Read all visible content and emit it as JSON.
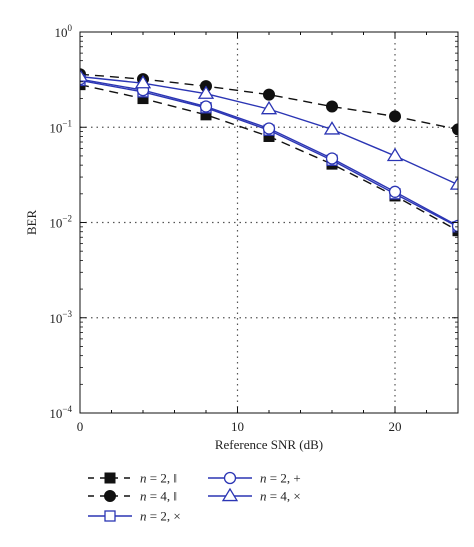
{
  "chart_data": {
    "type": "line",
    "xlabel": "Reference SNR (dB)",
    "ylabel": "BER",
    "x_scale": "linear",
    "y_scale": "log",
    "xlim": [
      0,
      24
    ],
    "ylim": [
      0.0001,
      1
    ],
    "x_ticks": [
      0,
      10,
      20
    ],
    "x_tick_labels": [
      "0",
      "10",
      "20"
    ],
    "y_ticks": [
      0.0001,
      0.001,
      0.01,
      0.1,
      1
    ],
    "y_tick_labels": [
      {
        "base": "10",
        "exp": "−4"
      },
      {
        "base": "10",
        "exp": "−3"
      },
      {
        "base": "10",
        "exp": "−2"
      },
      {
        "base": "10",
        "exp": "−1"
      },
      {
        "base": "10",
        "exp": "0"
      }
    ],
    "grid": "dotted",
    "legend_position": "bottom",
    "series": [
      {
        "name": "n = 2, ‖",
        "legend_var": "n",
        "legend_rest": " = 2, ‖",
        "color": "#111111",
        "line_style": "dashed",
        "marker": "filled-square",
        "x": [
          0,
          4,
          8,
          12,
          16,
          20,
          24
        ],
        "y": [
          0.28,
          0.2,
          0.135,
          0.08,
          0.041,
          0.019,
          0.0082
        ]
      },
      {
        "name": "n = 4, ‖",
        "legend_var": "n",
        "legend_rest": " = 4, ‖",
        "color": "#111111",
        "line_style": "dashed",
        "marker": "filled-circle",
        "x": [
          0,
          4,
          8,
          12,
          16,
          20,
          24
        ],
        "y": [
          0.36,
          0.32,
          0.27,
          0.22,
          0.165,
          0.13,
          0.095
        ]
      },
      {
        "name": "n = 2, ×",
        "legend_var": "n",
        "legend_rest": " = 2, ×",
        "color": "#2b35b4",
        "line_style": "solid",
        "marker": "open-square",
        "x": [
          0,
          4,
          8,
          12,
          16,
          20,
          24
        ],
        "y": [
          0.31,
          0.235,
          0.16,
          0.093,
          0.045,
          0.02,
          0.009
        ]
      },
      {
        "name": "n = 2, +",
        "legend_var": "n",
        "legend_rest": " = 2, +",
        "color": "#2b35b4",
        "line_style": "solid",
        "marker": "open-circle",
        "x": [
          0,
          4,
          8,
          12,
          16,
          20,
          24
        ],
        "y": [
          0.32,
          0.245,
          0.165,
          0.097,
          0.047,
          0.021,
          0.0092
        ]
      },
      {
        "name": "n = 4, ×",
        "legend_var": "n",
        "legend_rest": " = 4, ×",
        "color": "#2b35b4",
        "line_style": "solid",
        "marker": "open-triangle",
        "x": [
          0,
          4,
          8,
          12,
          16,
          20,
          24
        ],
        "y": [
          0.34,
          0.29,
          0.225,
          0.155,
          0.095,
          0.05,
          0.025
        ]
      }
    ]
  }
}
